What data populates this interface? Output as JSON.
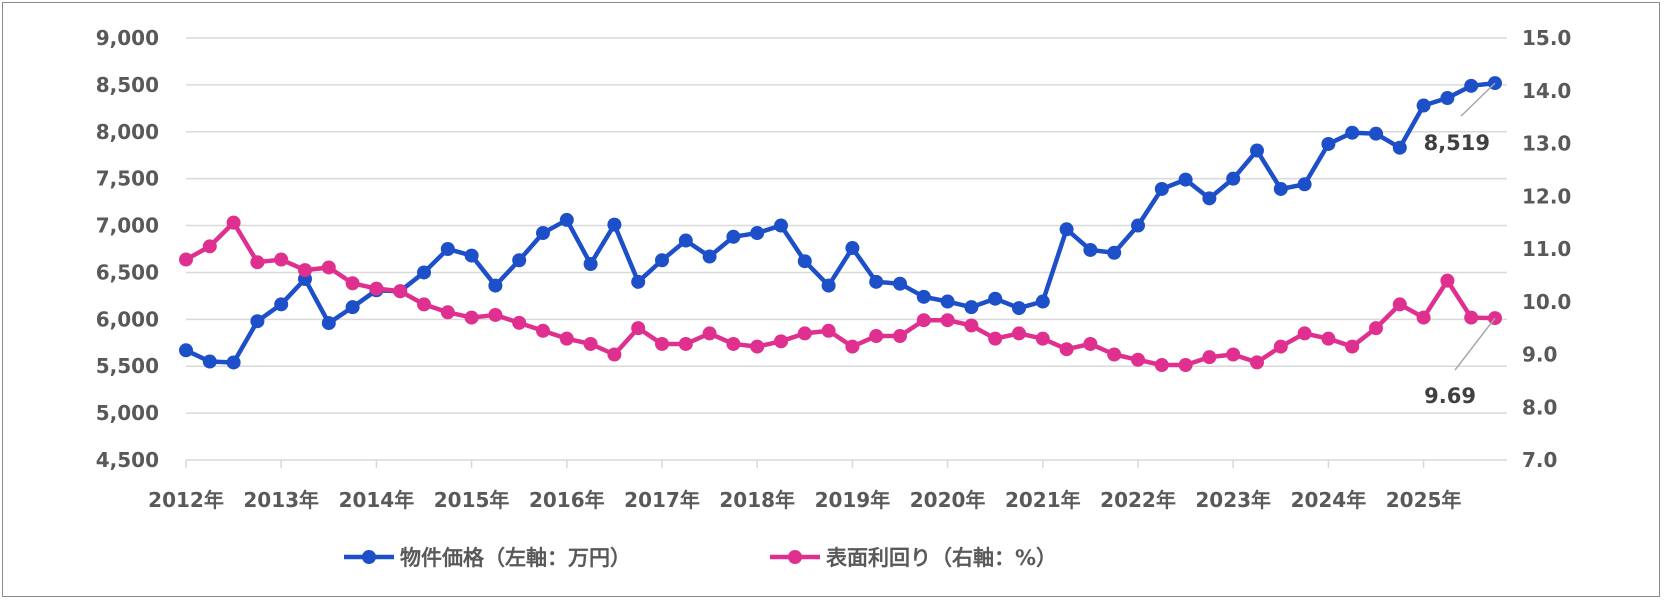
{
  "chart_data": {
    "type": "line",
    "x_tick_labels": [
      "2012年",
      "2013年",
      "2014年",
      "2015年",
      "2016年",
      "2017年",
      "2018年",
      "2019年",
      "2020年",
      "2021年",
      "2022年",
      "2023年",
      "2024年",
      "2025年"
    ],
    "x_frequency": "quarterly",
    "x_start": "2012 Q1",
    "x_end": "2025 Q4",
    "y_left": {
      "min": 4500,
      "max": 9000,
      "step": 500,
      "tick_labels": [
        "4,500",
        "5,000",
        "5,500",
        "6,000",
        "6,500",
        "7,000",
        "7,500",
        "8,000",
        "8,500",
        "9,000"
      ]
    },
    "y_right": {
      "min": 7.0,
      "max": 15.0,
      "step": 1.0,
      "tick_labels": [
        "7.0",
        "8.0",
        "9.0",
        "10.0",
        "11.0",
        "12.0",
        "13.0",
        "14.0",
        "15.0"
      ]
    },
    "grid": true,
    "legend_position": "bottom",
    "series": [
      {
        "name": "物件価格（左軸：万円）",
        "axis": "left",
        "color": "#1c4fc8",
        "values": [
          5670,
          5550,
          5540,
          5980,
          6160,
          6430,
          5960,
          6130,
          6310,
          6300,
          6500,
          6750,
          6680,
          6360,
          6630,
          6920,
          7060,
          6590,
          7010,
          6400,
          6630,
          6840,
          6670,
          6880,
          6920,
          7000,
          6620,
          6360,
          6760,
          6400,
          6380,
          6240,
          6190,
          6130,
          6220,
          6120,
          6190,
          6960,
          6740,
          6710,
          7000,
          7390,
          7490,
          7290,
          7500,
          7800,
          7390,
          7440,
          7870,
          7990,
          7980,
          7830,
          8280,
          8360,
          8490,
          8519
        ],
        "last_label": "8,519"
      },
      {
        "name": "表面利回り（右軸：%）",
        "axis": "right",
        "color": "#e0308f",
        "values": [
          10.8,
          11.05,
          11.5,
          10.75,
          10.8,
          10.6,
          10.65,
          10.35,
          10.25,
          10.2,
          9.95,
          9.8,
          9.7,
          9.75,
          9.6,
          9.45,
          9.3,
          9.2,
          9.0,
          9.5,
          9.2,
          9.2,
          9.4,
          9.2,
          9.15,
          9.25,
          9.4,
          9.45,
          9.15,
          9.35,
          9.35,
          9.65,
          9.65,
          9.55,
          9.3,
          9.4,
          9.3,
          9.1,
          9.2,
          9.0,
          8.9,
          8.8,
          8.8,
          8.95,
          9.0,
          8.85,
          9.15,
          9.4,
          9.3,
          9.15,
          9.5,
          9.95,
          9.7,
          10.4,
          9.7,
          9.69
        ],
        "last_label": "9.69"
      }
    ]
  }
}
